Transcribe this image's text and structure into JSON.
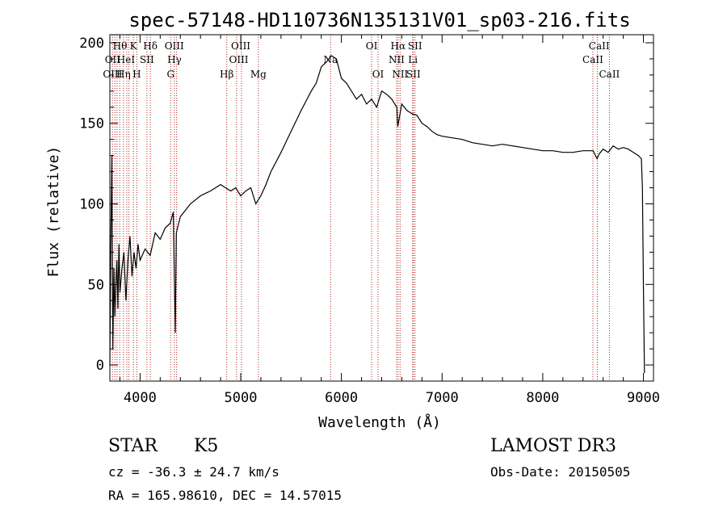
{
  "chart_data": {
    "type": "line",
    "title": "spec-57148-HD110736N135131V01_sp03-216.fits",
    "xlabel": "Wavelength (Å)",
    "ylabel": "Flux (relative)",
    "xlim": [
      3700,
      9100
    ],
    "ylim": [
      -10,
      205
    ],
    "xticks": [
      4000,
      5000,
      6000,
      7000,
      8000,
      9000
    ],
    "yticks": [
      0,
      50,
      100,
      150,
      200
    ],
    "grid": false,
    "series": [
      {
        "x": [
          3700,
          3710,
          3720,
          3730,
          3740,
          3750,
          3760,
          3770,
          3780,
          3790,
          3800,
          3820,
          3840,
          3860,
          3880,
          3900,
          3920,
          3940,
          3960,
          3980,
          4000,
          4050,
          4100,
          4150,
          4200,
          4250,
          4300,
          4330,
          4350,
          4360,
          4400,
          4450,
          4500,
          4600,
          4700,
          4800,
          4850,
          4900,
          4950,
          5000,
          5050,
          5100,
          5150,
          5200,
          5250,
          5300,
          5400,
          5500,
          5600,
          5700,
          5750,
          5800,
          5850,
          5900,
          5950,
          6000,
          6050,
          6100,
          6150,
          6200,
          6250,
          6300,
          6350,
          6400,
          6450,
          6500,
          6550,
          6560,
          6600,
          6650,
          6700,
          6750,
          6800,
          6850,
          6900,
          6950,
          7000,
          7100,
          7200,
          7300,
          7400,
          7500,
          7600,
          7700,
          7800,
          7900,
          8000,
          8100,
          8200,
          8300,
          8400,
          8500,
          8540,
          8560,
          8600,
          8650,
          8700,
          8750,
          8800,
          8850,
          8900,
          8950,
          8980,
          8990,
          9000,
          9010
        ],
        "y": [
          0,
          75,
          130,
          10,
          60,
          30,
          50,
          65,
          35,
          75,
          45,
          60,
          70,
          40,
          65,
          80,
          55,
          70,
          60,
          75,
          65,
          72,
          68,
          82,
          78,
          85,
          88,
          95,
          20,
          82,
          92,
          96,
          100,
          105,
          108,
          112,
          110,
          108,
          110,
          105,
          108,
          110,
          100,
          105,
          112,
          120,
          132,
          145,
          158,
          170,
          175,
          185,
          188,
          192,
          190,
          178,
          175,
          170,
          165,
          168,
          162,
          165,
          160,
          170,
          168,
          165,
          160,
          148,
          162,
          158,
          156,
          155,
          150,
          148,
          145,
          143,
          142,
          141,
          140,
          138,
          137,
          136,
          137,
          136,
          135,
          134,
          133,
          133,
          132,
          132,
          133,
          133,
          128,
          131,
          134,
          132,
          136,
          134,
          135,
          134,
          132,
          130,
          128,
          110,
          50,
          -5
        ]
      }
    ],
    "line_markers": [
      {
        "x": 3726,
        "label": "OII"
      },
      {
        "x": 3750,
        "label": "OIII"
      },
      {
        "x": 3771,
        "label": "Hθ"
      },
      {
        "x": 3798,
        "label": "Hθ"
      },
      {
        "x": 3835,
        "label": "Hη"
      },
      {
        "x": 3869,
        "label": "HeI"
      },
      {
        "x": 3889,
        "label": "Hη"
      },
      {
        "x": 3934,
        "label": "K"
      },
      {
        "x": 3968,
        "label": "H"
      },
      {
        "x": 4068,
        "label": "SII"
      },
      {
        "x": 4102,
        "label": "Hδ"
      },
      {
        "x": 4304,
        "label": "G"
      },
      {
        "x": 4341,
        "label": "Hγ"
      },
      {
        "x": 4363,
        "label": "OIII"
      },
      {
        "x": 4861,
        "label": "Hβ"
      },
      {
        "x": 4959,
        "label": "OIII"
      },
      {
        "x": 5007,
        "label": "OIII"
      },
      {
        "x": 5175,
        "label": "Mg"
      },
      {
        "x": 5893,
        "label": "Na"
      },
      {
        "x": 6300,
        "label": "OI"
      },
      {
        "x": 6364,
        "label": "OI"
      },
      {
        "x": 6548,
        "label": "NII"
      },
      {
        "x": 6563,
        "label": "Hα"
      },
      {
        "x": 6583,
        "label": "NII"
      },
      {
        "x": 6707,
        "label": "Li"
      },
      {
        "x": 6716,
        "label": "SII"
      },
      {
        "x": 6731,
        "label": "SII"
      },
      {
        "x": 8498,
        "label": "CaII"
      },
      {
        "x": 8542,
        "label": "CaII"
      },
      {
        "x": 8662,
        "label": "CaII"
      }
    ],
    "line_label_rows": [
      [
        {
          "x": 3800,
          "label": "Hθ"
        },
        {
          "x": 3934,
          "label": "K"
        },
        {
          "x": 4102,
          "label": "Hδ"
        },
        {
          "x": 4340,
          "label": "OIII"
        },
        {
          "x": 5000,
          "label": "OIII"
        },
        {
          "x": 6300,
          "label": "OI"
        },
        {
          "x": 6563,
          "label": "Hα"
        },
        {
          "x": 6731,
          "label": "SII"
        },
        {
          "x": 8560,
          "label": "CaII"
        }
      ],
      [
        {
          "x": 3727,
          "label": "OII"
        },
        {
          "x": 3860,
          "label": "HeI"
        },
        {
          "x": 4068,
          "label": "SII"
        },
        {
          "x": 4341,
          "label": "Hγ"
        },
        {
          "x": 4980,
          "label": "OIII"
        },
        {
          "x": 5893,
          "label": "Na"
        },
        {
          "x": 6548,
          "label": "NII"
        },
        {
          "x": 6710,
          "label": "Li"
        },
        {
          "x": 8498,
          "label": "CaII"
        }
      ],
      [
        {
          "x": 3727,
          "label": "OIII"
        },
        {
          "x": 3835,
          "label": "Hη"
        },
        {
          "x": 3968,
          "label": "H"
        },
        {
          "x": 4304,
          "label": "G"
        },
        {
          "x": 4861,
          "label": "Hβ"
        },
        {
          "x": 5175,
          "label": "Mg"
        },
        {
          "x": 6364,
          "label": "OI"
        },
        {
          "x": 6583,
          "label": "NII"
        },
        {
          "x": 6716,
          "label": "SII"
        },
        {
          "x": 8662,
          "label": "CaII"
        }
      ]
    ]
  },
  "info": {
    "object_class": "STAR",
    "subclass": "K5",
    "survey": "LAMOST DR3",
    "redshift": "cz = -36.3 ± 24.7 km/s",
    "obs_date": "Obs-Date: 20150505",
    "coords": "RA = 165.98610, DEC =  14.57015"
  },
  "colors": {
    "spectrum": "#000000",
    "line_marker": "#b22222"
  }
}
